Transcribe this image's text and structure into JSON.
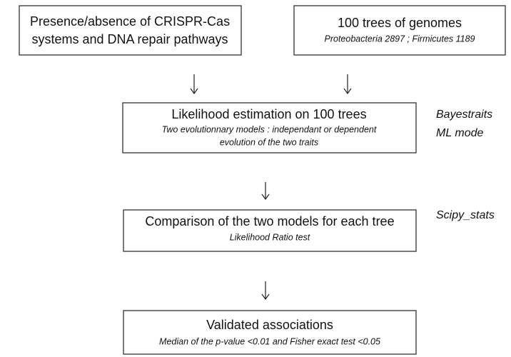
{
  "nodes": [
    {
      "title": [
        "Presence/absence of CRISPR-Cas",
        "systems and DNA repair pathways"
      ]
    },
    {
      "title": [
        "100 trees of genomes"
      ],
      "subtitle": [
        "Proteobacteria 2897  ;  Firmicutes 1189"
      ]
    },
    {
      "title": [
        "Likelihood estimation on 100 trees"
      ],
      "subtitle": [
        "Two evolutionnary models : independant or dependent",
        "evolution of the two traits"
      ]
    },
    {
      "title": [
        "Comparison of the two models for each tree"
      ],
      "subtitle": [
        "Likelihood Ratio test"
      ]
    },
    {
      "title": [
        "Validated associations"
      ],
      "subtitle": [
        "Median of the p-value <0.01 and Fisher exact test <0.05"
      ]
    }
  ],
  "annotations": [
    [
      "Bayestraits",
      "ML mode"
    ],
    [
      "Scipy_stats"
    ]
  ]
}
